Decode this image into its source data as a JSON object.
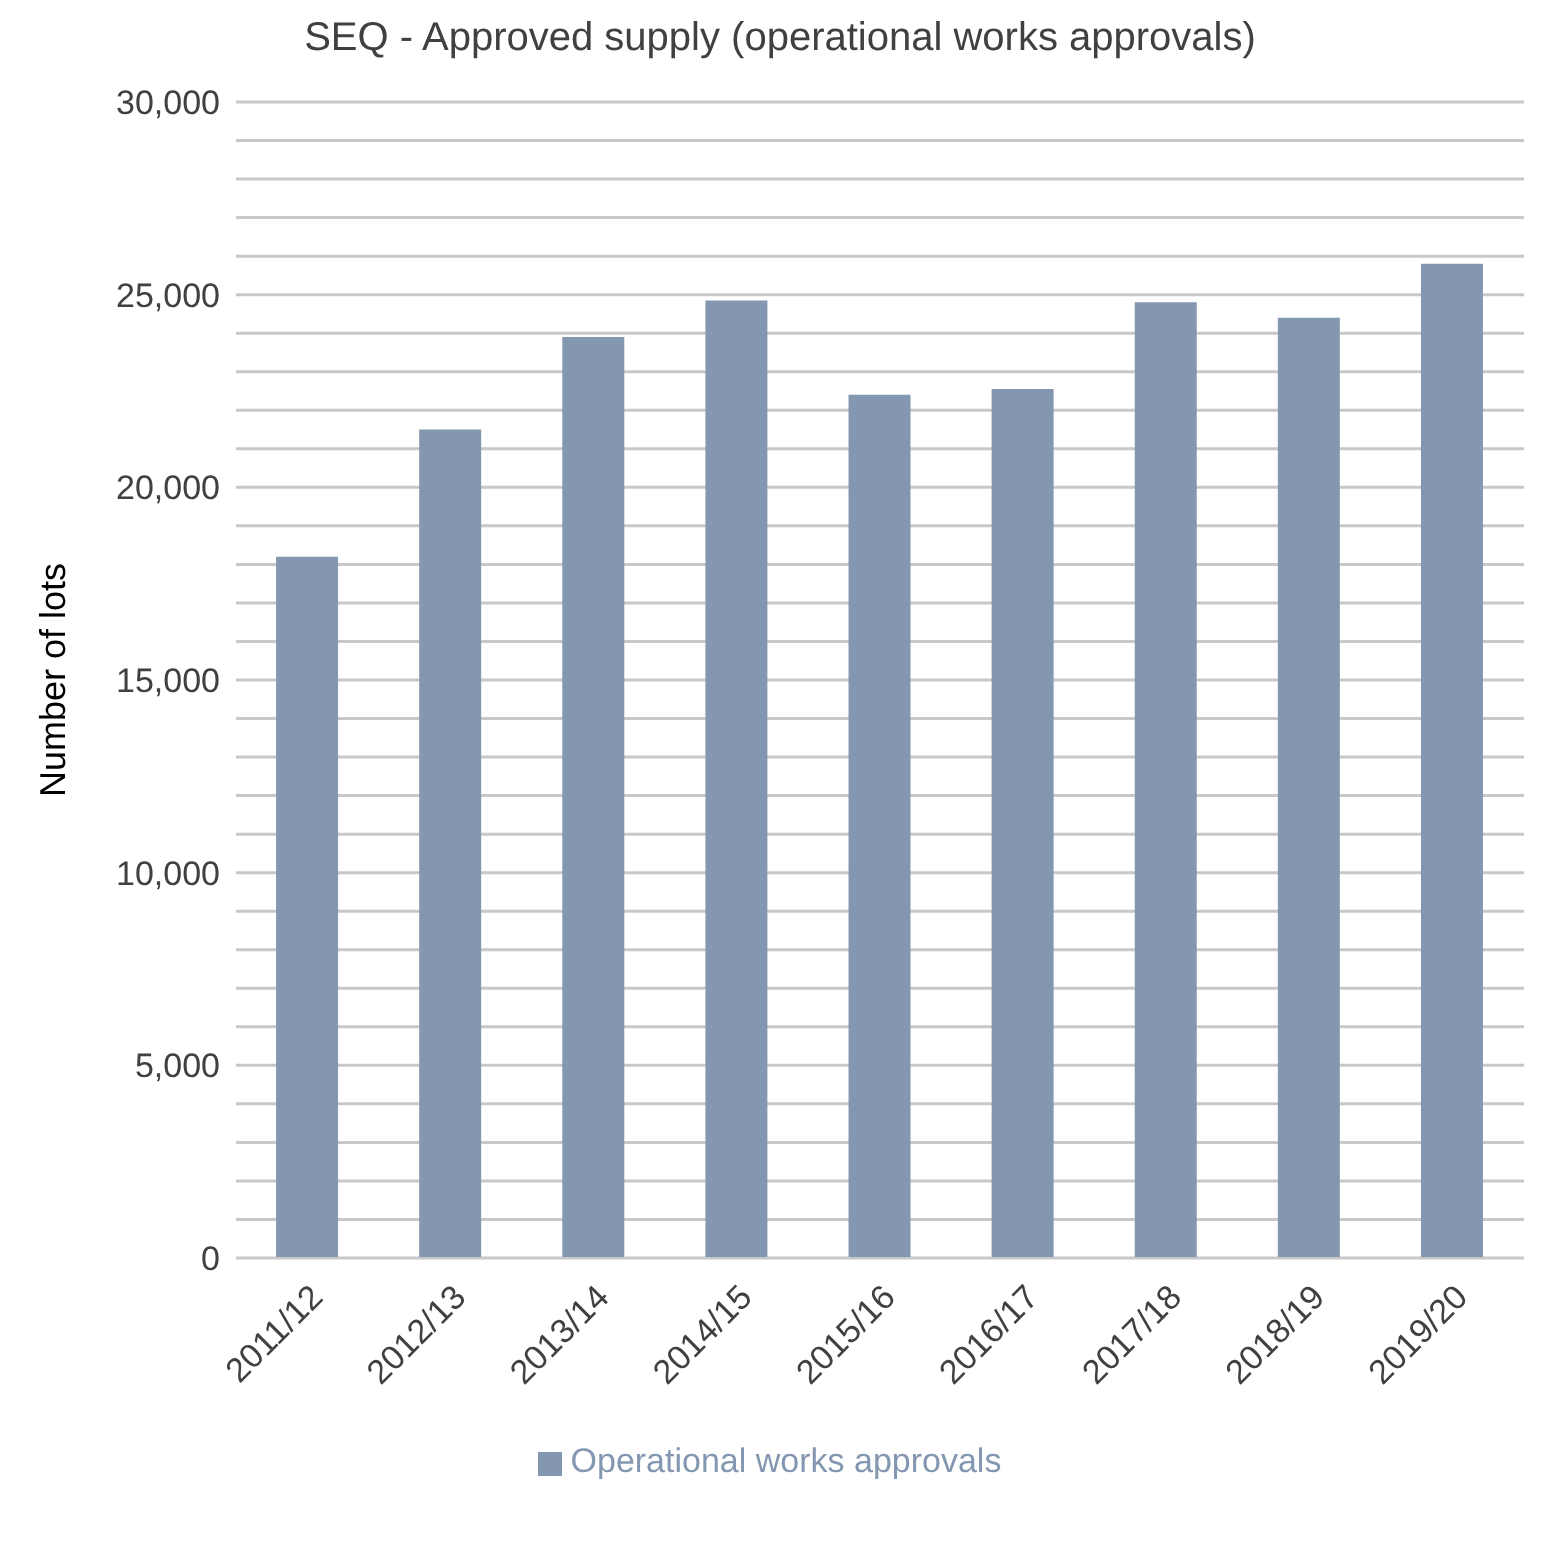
{
  "chart_data": {
    "type": "bar",
    "title": "SEQ - Approved supply (operational works approvals)",
    "ylabel": "Number of lots",
    "categories": [
      "2011/12",
      "2012/13",
      "2013/14",
      "2014/15",
      "2015/16",
      "2016/17",
      "2017/18",
      "2018/19",
      "2019/20"
    ],
    "series": [
      {
        "name": "Operational works approvals",
        "color": "#8497b0",
        "values": [
          18200,
          21500,
          23900,
          24850,
          22400,
          22550,
          24800,
          24400,
          25800
        ]
      }
    ],
    "ylim": [
      0,
      30000
    ],
    "yticks": [
      0,
      {
        "value": 1000,
        "label": null
      },
      {
        "value": 2000,
        "label": null
      },
      {
        "value": 3000,
        "label": null
      },
      {
        "value": 4000,
        "label": null
      },
      "5,000",
      {
        "value": 6000,
        "label": null
      },
      {
        "value": 7000,
        "label": null
      },
      {
        "value": 8000,
        "label": null
      },
      {
        "value": 9000,
        "label": null
      },
      {
        "value": 10000,
        "label": "10,000"
      },
      {
        "value": 11000,
        "label": null
      },
      {
        "value": 12000,
        "label": null
      },
      {
        "value": 13000,
        "label": null
      },
      {
        "value": 14000,
        "label": null
      },
      {
        "value": 15000,
        "label": "15,000"
      },
      {
        "value": 16000,
        "label": null
      },
      {
        "value": 17000,
        "label": null
      },
      {
        "value": 18000,
        "label": null
      },
      {
        "value": 19000,
        "label": null
      },
      {
        "value": 20000,
        "label": "20,000"
      },
      {
        "value": 21000,
        "label": null
      },
      {
        "value": 22000,
        "label": null
      },
      {
        "value": 23000,
        "label": null
      },
      {
        "value": 24000,
        "label": null
      },
      {
        "value": 25000,
        "label": "25,000"
      },
      {
        "value": 26000,
        "label": null
      },
      {
        "value": 27000,
        "label": null
      },
      {
        "value": 28000,
        "label": null
      },
      {
        "value": 29000,
        "label": null
      },
      {
        "value": 30000,
        "label": "30,000"
      }
    ],
    "grid": "y",
    "legend": "bottom"
  }
}
